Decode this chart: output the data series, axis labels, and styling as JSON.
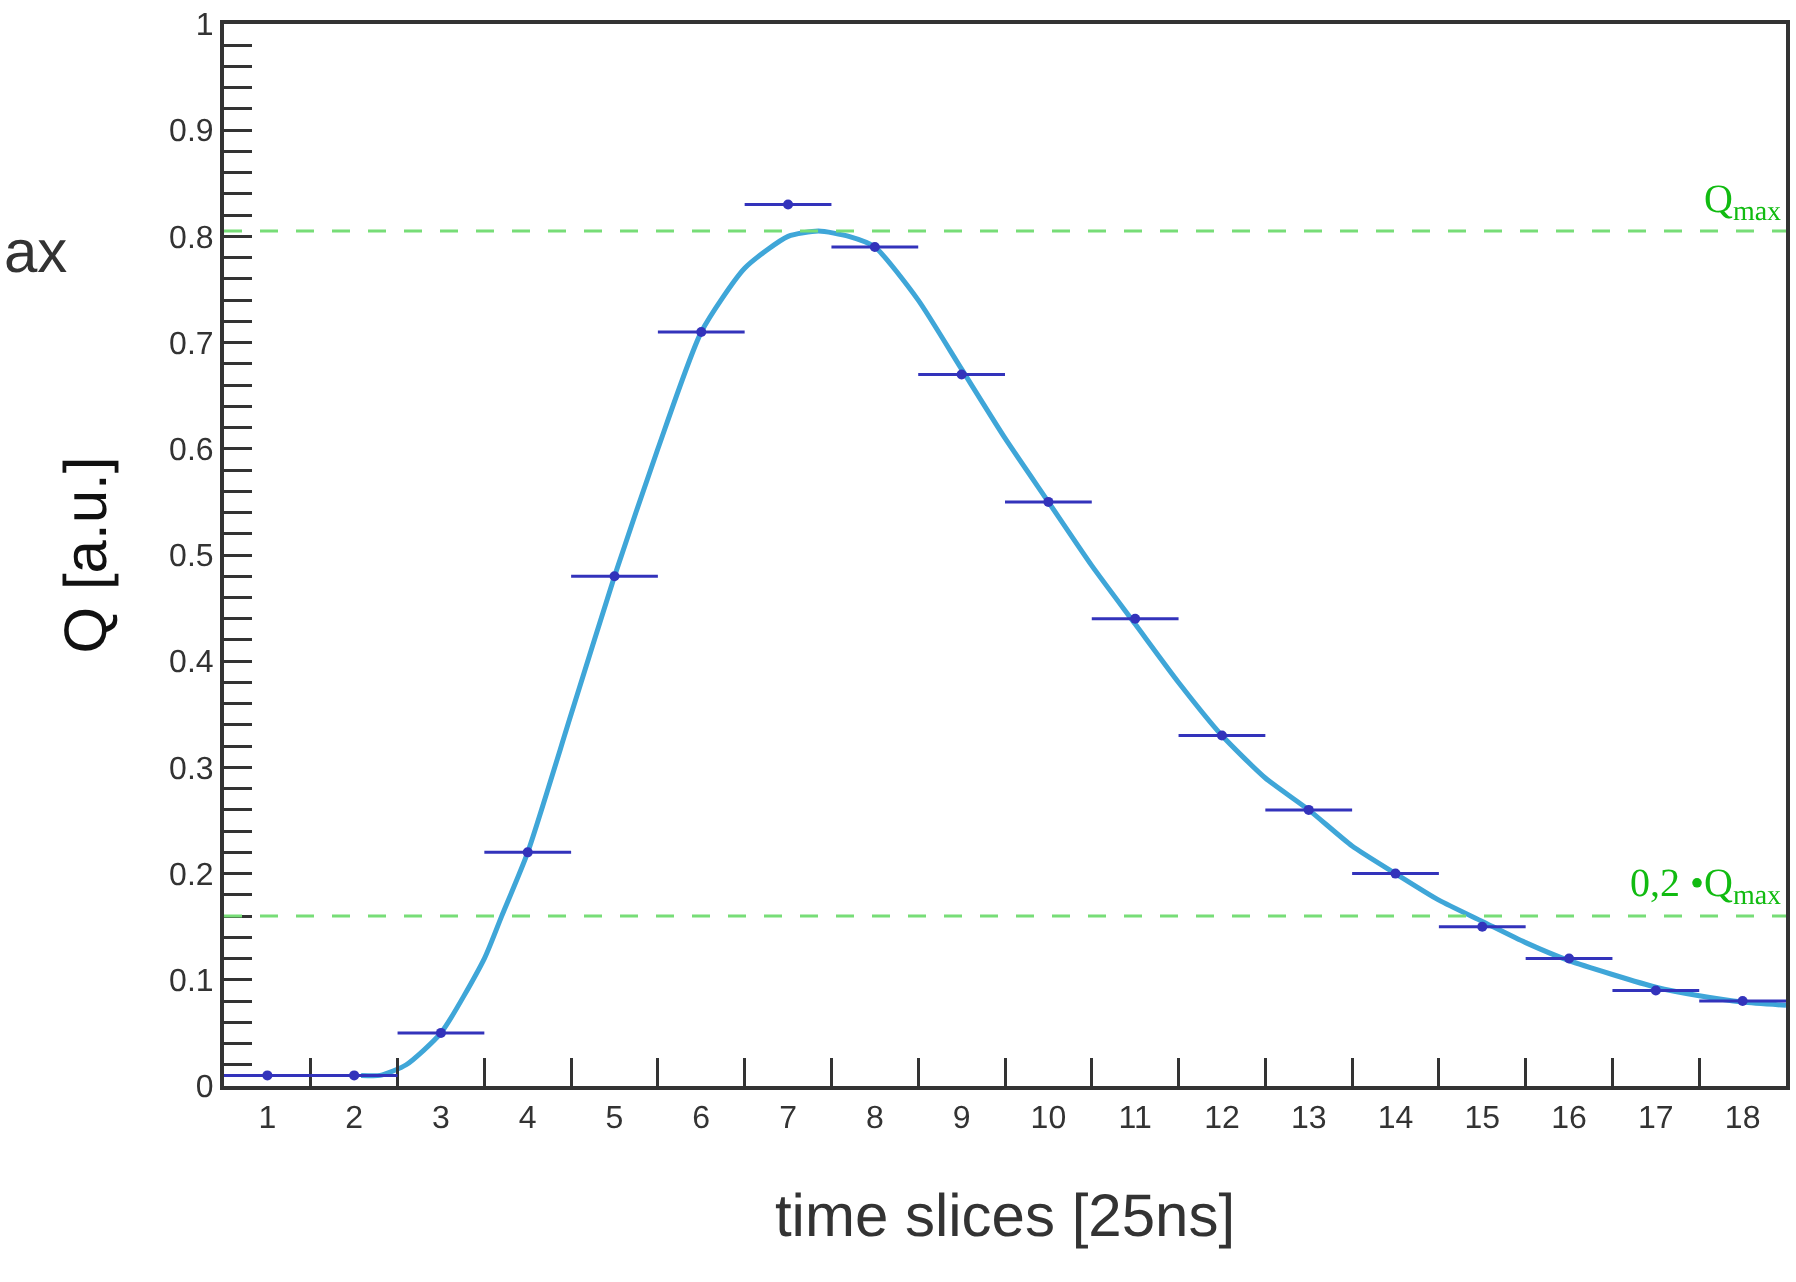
{
  "chart_data": {
    "type": "scatter",
    "xlabel": "time slices [25ns]",
    "ylabel": "Q [a.u.]",
    "annotations": [
      "ax"
    ],
    "x": [
      1,
      2,
      3,
      4,
      5,
      6,
      7,
      8,
      9,
      10,
      11,
      12,
      13,
      14,
      15,
      16,
      17,
      18
    ],
    "xlim": [
      0.5,
      18.5
    ],
    "xticks": [
      1,
      2,
      3,
      4,
      5,
      6,
      7,
      8,
      9,
      10,
      11,
      12,
      13,
      14,
      15,
      16,
      17,
      18,
      {
        "value": 1.5,
        "label": null
      },
      {
        "value": 2.5,
        "label": null
      },
      {
        "value": 3.5,
        "label": null
      },
      {
        "value": 4.5,
        "label": null
      },
      {
        "value": 5.5,
        "label": null
      },
      {
        "value": 6.5,
        "label": null
      },
      {
        "value": 7.5,
        "label": null
      },
      {
        "value": 8.5,
        "label": null
      },
      {
        "value": 9.5,
        "label": null
      },
      {
        "value": 10.5,
        "label": null
      },
      {
        "value": 11.5,
        "label": null
      },
      {
        "value": 12.5,
        "label": null
      },
      {
        "value": 13.5,
        "label": null
      },
      {
        "value": 14.5,
        "label": null
      },
      {
        "value": 15.5,
        "label": null
      },
      {
        "value": 16.5,
        "label": null
      },
      {
        "value": 17.5,
        "label": null
      }
    ],
    "ylim": [
      0,
      1
    ],
    "yticks": [
      0,
      0.1,
      0.2,
      0.3,
      0.4,
      0.5,
      0.6,
      0.7,
      0.8,
      0.9,
      1,
      {
        "value": 0.02,
        "label": null
      },
      {
        "value": 0.04,
        "label": null
      },
      {
        "value": 0.06,
        "label": null
      },
      {
        "value": 0.08,
        "label": null
      },
      {
        "value": 0.12,
        "label": null
      },
      {
        "value": 0.14,
        "label": null
      },
      {
        "value": 0.16,
        "label": null
      },
      {
        "value": 0.18,
        "label": null
      },
      {
        "value": 0.22,
        "label": null
      },
      {
        "value": 0.24,
        "label": null
      },
      {
        "value": 0.26,
        "label": null
      },
      {
        "value": 0.28,
        "label": null
      },
      {
        "value": 0.32,
        "label": null
      },
      {
        "value": 0.34,
        "label": null
      },
      {
        "value": 0.36,
        "label": null
      },
      {
        "value": 0.38,
        "label": null
      },
      {
        "value": 0.42,
        "label": null
      },
      {
        "value": 0.44,
        "label": null
      },
      {
        "value": 0.46,
        "label": null
      },
      {
        "value": 0.48,
        "label": null
      },
      {
        "value": 0.52,
        "label": null
      },
      {
        "value": 0.54,
        "label": null
      },
      {
        "value": 0.56,
        "label": null
      },
      {
        "value": 0.58,
        "label": null
      },
      {
        "value": 0.62,
        "label": null
      },
      {
        "value": 0.64,
        "label": null
      },
      {
        "value": 0.66,
        "label": null
      },
      {
        "value": 0.68,
        "label": null
      },
      {
        "value": 0.72,
        "label": null
      },
      {
        "value": 0.74,
        "label": null
      },
      {
        "value": 0.76,
        "label": null
      },
      {
        "value": 0.78,
        "label": null
      },
      {
        "value": 0.82,
        "label": null
      },
      {
        "value": 0.84,
        "label": null
      },
      {
        "value": 0.86,
        "label": null
      },
      {
        "value": 0.88,
        "label": null
      },
      {
        "value": 0.92,
        "label": null
      },
      {
        "value": 0.94,
        "label": null
      },
      {
        "value": 0.96,
        "label": null
      },
      {
        "value": 0.98,
        "label": null
      }
    ],
    "grid": false,
    "series": [
      {
        "type": "scatter",
        "marker": "circle",
        "color": "#3333bb",
        "values": [
          0.01,
          0.01,
          0.05,
          0.22,
          0.48,
          0.71,
          0.83,
          0.79,
          0.67,
          0.55,
          0.44,
          0.33,
          0.26,
          0.2,
          0.15,
          0.12,
          0.09,
          0.08
        ],
        "xerrors": [
          0.5,
          0.5,
          0.5,
          0.5,
          0.5,
          0.5,
          0.5,
          0.5,
          0.5,
          0.5,
          0.5,
          0.5,
          0.5,
          0.5,
          0.5,
          0.5,
          0.5,
          0.5
        ]
      },
      {
        "type": "line",
        "color": "#3fa6d8",
        "line_style": "solid",
        "x": [
          2.08,
          2.3,
          2.6,
          3,
          3.5,
          3.7,
          4,
          4.5,
          5,
          5.5,
          6,
          6.5,
          7,
          7.35,
          7.7,
          8,
          8.5,
          9,
          9.5,
          10,
          10.5,
          11,
          11.5,
          12,
          12.5,
          13,
          13.5,
          14,
          14.5,
          15,
          15.5,
          16,
          16.5,
          17,
          17.5,
          18,
          18.5
        ],
        "values": [
          0.01,
          0.01,
          0.02,
          0.05,
          0.12,
          0.16,
          0.22,
          0.35,
          0.48,
          0.6,
          0.71,
          0.77,
          0.8,
          0.805,
          0.8,
          0.79,
          0.74,
          0.675,
          0.61,
          0.55,
          0.49,
          0.435,
          0.38,
          0.33,
          0.29,
          0.26,
          0.226,
          0.2,
          0.175,
          0.155,
          0.135,
          0.118,
          0.105,
          0.093,
          0.085,
          0.079,
          0.076
        ]
      }
    ],
    "ref_lines": [
      {
        "axis": "y",
        "value": 0.805,
        "label": "Q$_{max}$",
        "color": "#77dd77",
        "line_style": "dashed"
      },
      {
        "axis": "y",
        "value": 0.16,
        "label": "0,2 •Q$_{max}$",
        "color": "#77dd77",
        "line_style": "dashed"
      }
    ]
  }
}
